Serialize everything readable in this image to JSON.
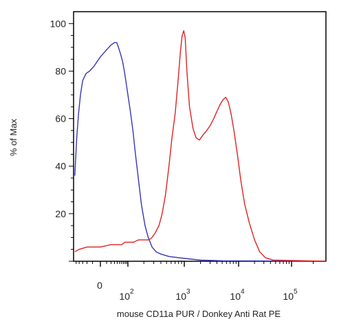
{
  "chart_data": {
    "type": "line",
    "title": "",
    "xlabel": "mouse CD11a PUR / Donkey Anti Rat PE",
    "ylabel": "% of Max",
    "x_scale": "biexponential",
    "xlim": [
      -60,
      300000
    ],
    "ylim": [
      0,
      105
    ],
    "y_ticks": [
      20,
      40,
      60,
      80,
      100
    ],
    "x_tick_labels": [
      {
        "value": 0,
        "base": "0",
        "exp": ""
      },
      {
        "value": 100,
        "base": "10",
        "exp": "2"
      },
      {
        "value": 1000,
        "base": "10",
        "exp": "3"
      },
      {
        "value": 10000,
        "base": "10",
        "exp": "4"
      },
      {
        "value": 100000,
        "base": "10",
        "exp": "5"
      }
    ],
    "grid": false,
    "legend": "none",
    "series": [
      {
        "color": "#3333bb",
        "points": [
          [
            -55,
            36
          ],
          [
            -52,
            43
          ],
          [
            -48,
            52
          ],
          [
            -42,
            62
          ],
          [
            -36,
            70
          ],
          [
            -30,
            76
          ],
          [
            -22,
            79
          ],
          [
            -15,
            80
          ],
          [
            -8,
            82
          ],
          [
            0,
            86
          ],
          [
            10,
            89
          ],
          [
            20,
            91
          ],
          [
            30,
            92
          ],
          [
            38,
            92
          ],
          [
            45,
            90
          ],
          [
            55,
            87
          ],
          [
            65,
            84
          ],
          [
            75,
            80
          ],
          [
            85,
            76
          ],
          [
            95,
            72
          ],
          [
            110,
            64
          ],
          [
            125,
            55
          ],
          [
            140,
            45
          ],
          [
            160,
            34
          ],
          [
            180,
            24
          ],
          [
            210,
            15
          ],
          [
            240,
            10
          ],
          [
            280,
            6
          ],
          [
            330,
            4
          ],
          [
            400,
            3
          ],
          [
            550,
            2
          ],
          [
            800,
            1.5
          ],
          [
            1200,
            1
          ],
          [
            2000,
            0.5
          ],
          [
            5000,
            0.2
          ],
          [
            300000,
            0
          ]
        ]
      },
      {
        "color": "#dd2222",
        "points": [
          [
            -55,
            4
          ],
          [
            -40,
            5
          ],
          [
            -20,
            6
          ],
          [
            0,
            6
          ],
          [
            20,
            7
          ],
          [
            40,
            7
          ],
          [
            60,
            7
          ],
          [
            80,
            8
          ],
          [
            100,
            8
          ],
          [
            130,
            8
          ],
          [
            160,
            9
          ],
          [
            200,
            9
          ],
          [
            250,
            9
          ],
          [
            280,
            10
          ],
          [
            320,
            12
          ],
          [
            370,
            15
          ],
          [
            420,
            20
          ],
          [
            480,
            28
          ],
          [
            550,
            40
          ],
          [
            620,
            52
          ],
          [
            700,
            62
          ],
          [
            780,
            75
          ],
          [
            860,
            88
          ],
          [
            920,
            95
          ],
          [
            980,
            97
          ],
          [
            1040,
            94
          ],
          [
            1120,
            80
          ],
          [
            1250,
            65
          ],
          [
            1450,
            56
          ],
          [
            1650,
            52
          ],
          [
            1900,
            51
          ],
          [
            2200,
            53
          ],
          [
            2600,
            55
          ],
          [
            3000,
            57
          ],
          [
            3500,
            60
          ],
          [
            4000,
            63
          ],
          [
            4600,
            66
          ],
          [
            5200,
            68
          ],
          [
            5800,
            69
          ],
          [
            6500,
            67
          ],
          [
            7300,
            62
          ],
          [
            8200,
            55
          ],
          [
            9500,
            45
          ],
          [
            11000,
            34
          ],
          [
            13000,
            24
          ],
          [
            16000,
            16
          ],
          [
            20000,
            9
          ],
          [
            25000,
            4
          ],
          [
            32000,
            1.5
          ],
          [
            45000,
            0.5
          ],
          [
            300000,
            0
          ]
        ]
      }
    ]
  }
}
